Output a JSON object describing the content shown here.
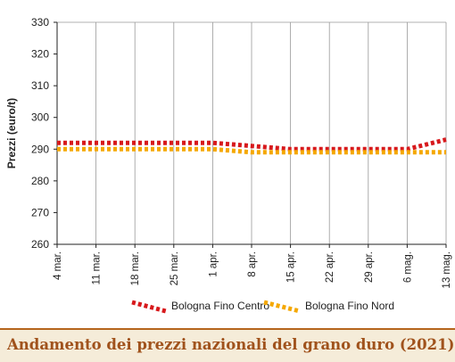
{
  "caption": {
    "title": "Andamento dei prezzi nazionali del grano duro (2021)"
  },
  "colors": {
    "series_centro": "#d7191c",
    "series_nord": "#f5a800",
    "grid": "#999999",
    "frame_accent": "#b5651d",
    "caption_background": "#f5ecd9",
    "caption_text": "#a0521c"
  },
  "chart_data": {
    "type": "line",
    "title": "",
    "xlabel": "",
    "ylabel": "Prezzi (euro/t)",
    "ylim": [
      260,
      330
    ],
    "yticks": [
      260,
      270,
      280,
      290,
      300,
      310,
      320,
      330
    ],
    "grid": "vertical",
    "legend_position": "bottom-center",
    "categories": [
      "4 mar.",
      "11 mar.",
      "18 mar.",
      "25 mar.",
      "1 apr.",
      "8 apr.",
      "15 apr.",
      "22 apr.",
      "29 apr.",
      "6 mag.",
      "13 mag."
    ],
    "series": [
      {
        "name": "Bologna Fino Centro",
        "color": "#d7191c",
        "values": [
          292,
          292,
          292,
          292,
          292,
          291,
          290,
          290,
          290,
          290,
          293
        ]
      },
      {
        "name": "Bologna Fino Nord",
        "color": "#f5a800",
        "values": [
          290,
          290,
          290,
          290,
          290,
          289,
          289,
          289,
          289,
          289,
          289
        ]
      }
    ]
  }
}
